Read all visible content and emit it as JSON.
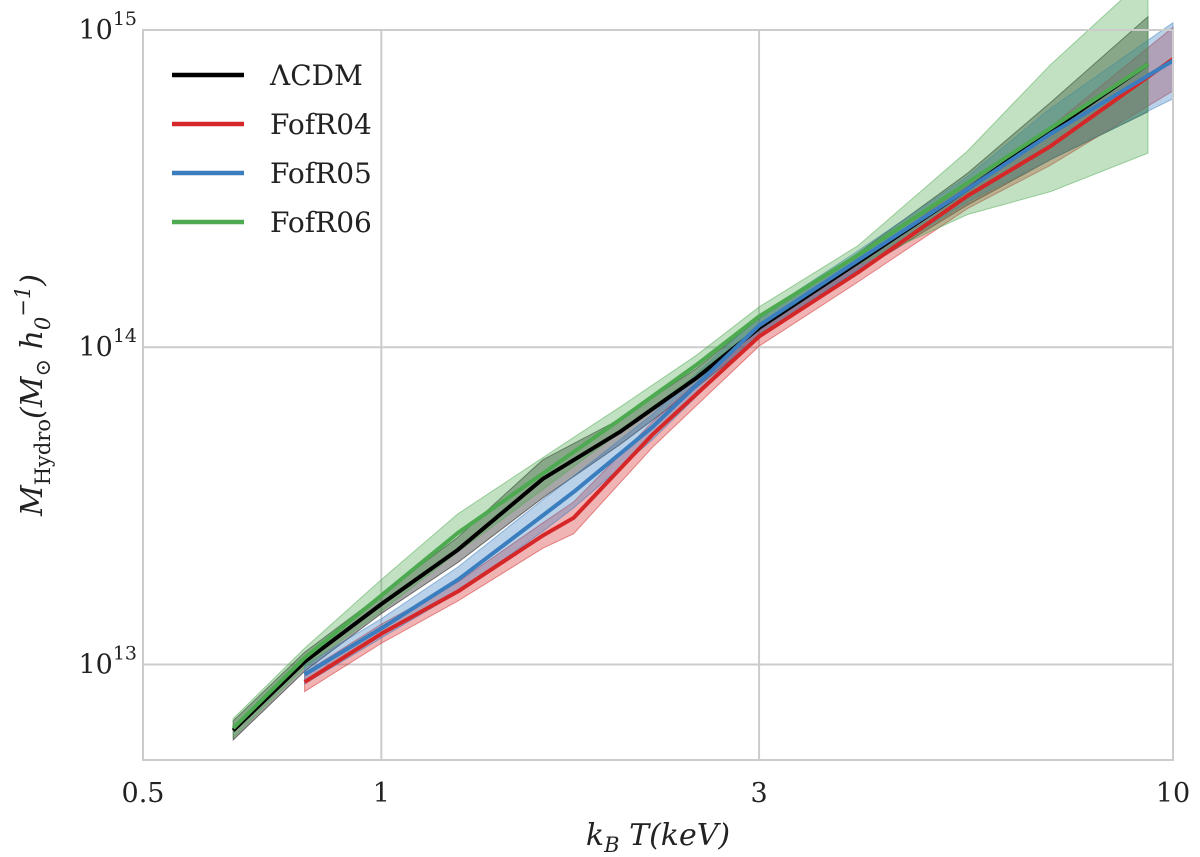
{
  "chart_data": {
    "type": "line",
    "title": "",
    "xlabel": "k_B T(keV)",
    "ylabel": "M_Hydro(M_⊙ h_0^-1)",
    "xscale": "log",
    "yscale": "log",
    "xlim": [
      0.5,
      10
    ],
    "ylim": [
      5000000000000.0,
      1000000000000000.0
    ],
    "grid": true,
    "legend_position": "top-left",
    "x_ticks": [
      {
        "value": 0.5,
        "label": "0.5"
      },
      {
        "value": 1,
        "label": "1"
      },
      {
        "value": 3,
        "label": "3"
      },
      {
        "value": 10,
        "label": "10"
      }
    ],
    "y_ticks": [
      {
        "value": 10000000000000.0,
        "base": "10",
        "exp": "13"
      },
      {
        "value": 100000000000000.0,
        "base": "10",
        "exp": "14"
      },
      {
        "value": 1000000000000000.0,
        "base": "10",
        "exp": "15"
      }
    ],
    "series": [
      {
        "name": "ΛCDM",
        "color": "#000000",
        "x": [
          0.65,
          0.8,
          1.0,
          1.25,
          1.6,
          2.0,
          2.5,
          3.0,
          4.0,
          5.5,
          7.0,
          9.3
        ],
        "y": [
          6200000000000.0,
          10200000000000.0,
          15500000000000.0,
          23000000000000.0,
          38500000000000.0,
          54000000000000.0,
          80000000000000.0,
          115000000000000.0,
          185000000000000.0,
          315000000000000.0,
          480000000000000.0,
          780000000000000.0
        ],
        "band": [
          0.03,
          0.03,
          0.03,
          0.04,
          0.06,
          0.04,
          0.03,
          0.03,
          0.03,
          0.05,
          0.09,
          0.15
        ]
      },
      {
        "name": "FofR04",
        "color": "#d62728",
        "x": [
          0.8,
          1.0,
          1.25,
          1.6,
          1.75,
          2.2,
          3.0,
          4.0,
          5.5,
          7.0,
          10.0
        ],
        "y": [
          8800000000000.0,
          12500000000000.0,
          17000000000000.0,
          25500000000000.0,
          29000000000000.0,
          53000000000000.0,
          108000000000000.0,
          172000000000000.0,
          300000000000000.0,
          430000000000000.0,
          810000000000000.0
        ],
        "band": [
          0.03,
          0.03,
          0.03,
          0.04,
          0.05,
          0.04,
          0.03,
          0.03,
          0.04,
          0.06,
          0.1
        ]
      },
      {
        "name": "FofR05",
        "color": "#3a7ebf",
        "x": [
          0.8,
          1.0,
          1.25,
          1.6,
          1.75,
          2.2,
          3.0,
          4.0,
          5.5,
          7.0,
          10.0
        ],
        "y": [
          9300000000000.0,
          13000000000000.0,
          18500000000000.0,
          29500000000000.0,
          35000000000000.0,
          56000000000000.0,
          117000000000000.0,
          188000000000000.0,
          315000000000000.0,
          470000000000000.0,
          800000000000000.0
        ],
        "band": [
          0.03,
          0.03,
          0.04,
          0.05,
          0.05,
          0.04,
          0.03,
          0.03,
          0.04,
          0.08,
          0.12
        ]
      },
      {
        "name": "FofR06",
        "color": "#4daa50",
        "x": [
          0.65,
          0.8,
          1.0,
          1.25,
          1.6,
          2.0,
          2.5,
          3.0,
          4.0,
          5.5,
          7.0,
          9.3
        ],
        "y": [
          6300000000000.0,
          10500000000000.0,
          16500000000000.0,
          26000000000000.0,
          40000000000000.0,
          59000000000000.0,
          88000000000000.0,
          125000000000000.0,
          195000000000000.0,
          330000000000000.0,
          490000000000000.0,
          780000000000000.0
        ],
        "band": [
          0.03,
          0.03,
          0.05,
          0.06,
          0.05,
          0.04,
          0.03,
          0.03,
          0.03,
          0.1,
          0.2,
          0.28
        ]
      }
    ]
  }
}
